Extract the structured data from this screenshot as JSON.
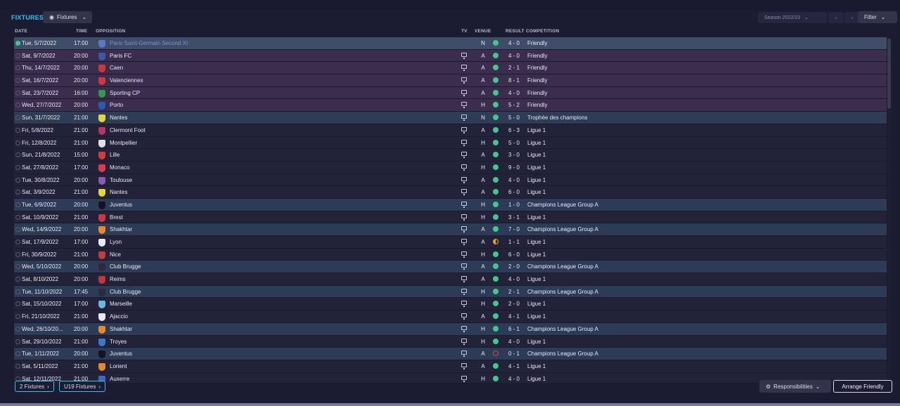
{
  "header": {
    "title": "FIXTURES",
    "view_label": "Fixtures",
    "season_label": "Season 2022/23",
    "filter_label": "Filter"
  },
  "columns": {
    "date": "DATE",
    "time": "TIME",
    "opposition": "OPPOSITION",
    "tv": "TV",
    "venue": "VENUE",
    "result": "RESULT",
    "competition": "COMPETITION"
  },
  "colors": {
    "accent": "#2ec4f0",
    "win": "#41c88b",
    "draw": "#e8a623",
    "loss": "#e2404a"
  },
  "fixtures": [
    {
      "date": "Tue, 5/7/2022",
      "time": "17:00",
      "opp": "Paris Saint-Germain Second XI",
      "tv": false,
      "venue": "N",
      "result": "win",
      "score": "4 - 0",
      "comp": "Friendly",
      "type": "sel",
      "crest": "#5a78c8"
    },
    {
      "date": "Sat, 9/7/2022",
      "time": "20:00",
      "opp": "Paris FC",
      "tv": true,
      "venue": "A",
      "result": "win",
      "score": "4 - 0",
      "comp": "Friendly",
      "type": "friendly",
      "crest": "#3a5aa8"
    },
    {
      "date": "Thu, 14/7/2022",
      "time": "20:00",
      "opp": "Caen",
      "tv": true,
      "venue": "A",
      "result": "win",
      "score": "2 - 1",
      "comp": "Friendly",
      "type": "friendly",
      "crest": "#c83a3a"
    },
    {
      "date": "Sat, 16/7/2022",
      "time": "20:00",
      "opp": "Valenciennes",
      "tv": true,
      "venue": "A",
      "result": "win",
      "score": "8 - 1",
      "comp": "Friendly",
      "type": "friendly",
      "crest": "#d8343c"
    },
    {
      "date": "Sat, 23/7/2022",
      "time": "16:00",
      "opp": "Sporting CP",
      "tv": true,
      "venue": "A",
      "result": "win",
      "score": "4 - 0",
      "comp": "Friendly",
      "type": "friendly",
      "crest": "#2e9a4a"
    },
    {
      "date": "Wed, 27/7/2022",
      "time": "20:00",
      "opp": "Porto",
      "tv": true,
      "venue": "H",
      "result": "win",
      "score": "5 - 2",
      "comp": "Friendly",
      "type": "friendly",
      "crest": "#2a5ab8"
    },
    {
      "date": "Sun, 31/7/2022",
      "time": "21:00",
      "opp": "Nantes",
      "tv": true,
      "venue": "N",
      "result": "win",
      "score": "5 - 0",
      "comp": "Trophée des champions",
      "type": "super",
      "crest": "#e6d634"
    },
    {
      "date": "Fri, 5/8/2022",
      "time": "21:00",
      "opp": "Clermont Foot",
      "tv": true,
      "venue": "A",
      "result": "win",
      "score": "6 - 3",
      "comp": "Ligue 1",
      "type": "league",
      "crest": "#b83464"
    },
    {
      "date": "Fri, 12/8/2022",
      "time": "21:00",
      "opp": "Montpellier",
      "tv": true,
      "venue": "H",
      "result": "win",
      "score": "5 - 0",
      "comp": "Ligue 1",
      "type": "league",
      "crest": "#e0e0e8"
    },
    {
      "date": "Sun, 21/8/2022",
      "time": "15:00",
      "opp": "Lille",
      "tv": true,
      "venue": "A",
      "result": "win",
      "score": "3 - 0",
      "comp": "Ligue 1",
      "type": "league",
      "crest": "#d83a3a"
    },
    {
      "date": "Sat, 27/8/2022",
      "time": "17:00",
      "opp": "Monaco",
      "tv": true,
      "venue": "H",
      "result": "win",
      "score": "9 - 0",
      "comp": "Ligue 1",
      "type": "league",
      "crest": "#e03a4a"
    },
    {
      "date": "Tue, 30/8/2022",
      "time": "20:00",
      "opp": "Toulouse",
      "tv": true,
      "venue": "A",
      "result": "win",
      "score": "4 - 0",
      "comp": "Ligue 1",
      "type": "league",
      "crest": "#8a5ab8"
    },
    {
      "date": "Sat, 3/9/2022",
      "time": "21:00",
      "opp": "Nantes",
      "tv": true,
      "venue": "A",
      "result": "win",
      "score": "6 - 0",
      "comp": "Ligue 1",
      "type": "league",
      "crest": "#e6d634"
    },
    {
      "date": "Tue, 6/9/2022",
      "time": "20:00",
      "opp": "Juventus",
      "tv": true,
      "venue": "H",
      "result": "win",
      "score": "1 - 0",
      "comp": "Champions League Group A",
      "type": "cl",
      "crest": "#141420"
    },
    {
      "date": "Sat, 10/9/2022",
      "time": "21:00",
      "opp": "Brest",
      "tv": true,
      "venue": "H",
      "result": "win",
      "score": "3 - 1",
      "comp": "Ligue 1",
      "type": "league",
      "crest": "#d8343c"
    },
    {
      "date": "Wed, 14/9/2022",
      "time": "20:00",
      "opp": "Shakhtar",
      "tv": true,
      "venue": "A",
      "result": "win",
      "score": "7 - 0",
      "comp": "Champions League Group A",
      "type": "cl",
      "crest": "#e88a2a"
    },
    {
      "date": "Sat, 17/9/2022",
      "time": "17:00",
      "opp": "Lyon",
      "tv": true,
      "venue": "A",
      "result": "draw",
      "score": "1 - 1",
      "comp": "Ligue 1",
      "type": "league",
      "crest": "#e8e8f0"
    },
    {
      "date": "Fri, 30/9/2022",
      "time": "21:00",
      "opp": "Nice",
      "tv": true,
      "venue": "H",
      "result": "win",
      "score": "6 - 0",
      "comp": "Ligue 1",
      "type": "league",
      "crest": "#c83a3a"
    },
    {
      "date": "Wed, 5/10/2022",
      "time": "20:00",
      "opp": "Club Brugge",
      "tv": true,
      "venue": "A",
      "result": "win",
      "score": "2 - 0",
      "comp": "Champions League Group A",
      "type": "cl",
      "crest": "#2a2a40"
    },
    {
      "date": "Sat, 8/10/2022",
      "time": "20:00",
      "opp": "Reims",
      "tv": true,
      "venue": "A",
      "result": "win",
      "score": "4 - 0",
      "comp": "Ligue 1",
      "type": "league",
      "crest": "#c8343c"
    },
    {
      "date": "Tue, 11/10/2022",
      "time": "17:45",
      "opp": "Club Brugge",
      "tv": true,
      "venue": "H",
      "result": "win",
      "score": "2 - 1",
      "comp": "Champions League Group A",
      "type": "cl",
      "crest": "#2a2a40"
    },
    {
      "date": "Sat, 15/10/2022",
      "time": "17:00",
      "opp": "Marseille",
      "tv": true,
      "venue": "H",
      "result": "win",
      "score": "2 - 0",
      "comp": "Ligue 1",
      "type": "league",
      "crest": "#6ab8e0"
    },
    {
      "date": "Fri, 21/10/2022",
      "time": "21:00",
      "opp": "Ajaccio",
      "tv": true,
      "venue": "A",
      "result": "win",
      "score": "4 - 1",
      "comp": "Ligue 1",
      "type": "league",
      "crest": "#e8e8f0"
    },
    {
      "date": "Wed, 26/10/20...",
      "time": "20:00",
      "opp": "Shakhtar",
      "tv": true,
      "venue": "H",
      "result": "win",
      "score": "6 - 1",
      "comp": "Champions League Group A",
      "type": "cl",
      "crest": "#e88a2a"
    },
    {
      "date": "Sat, 29/10/2022",
      "time": "21:00",
      "opp": "Troyes",
      "tv": true,
      "venue": "H",
      "result": "win",
      "score": "4 - 0",
      "comp": "Ligue 1",
      "type": "league",
      "crest": "#3a7ac8"
    },
    {
      "date": "Tue, 1/11/2022",
      "time": "20:00",
      "opp": "Juventus",
      "tv": true,
      "venue": "A",
      "result": "loss",
      "score": "0 - 1",
      "comp": "Champions League Group A",
      "type": "cl",
      "crest": "#141420"
    },
    {
      "date": "Sat, 5/11/2022",
      "time": "21:00",
      "opp": "Lorient",
      "tv": true,
      "venue": "A",
      "result": "win",
      "score": "4 - 1",
      "comp": "Ligue 1",
      "type": "league",
      "crest": "#e8862a"
    },
    {
      "date": "Sat, 12/11/2022",
      "time": "21:00",
      "opp": "Auxerre",
      "tv": true,
      "venue": "H",
      "result": "win",
      "score": "4 - 0",
      "comp": "Ligue 1",
      "type": "league",
      "crest": "#3a6ac8"
    }
  ],
  "footer": {
    "fixtures2_label": "2 Fixtures",
    "u19_label": "U19 Fixtures",
    "responsibilities_label": "Responsibilities",
    "arrange_label": "Arrange Friendly"
  }
}
